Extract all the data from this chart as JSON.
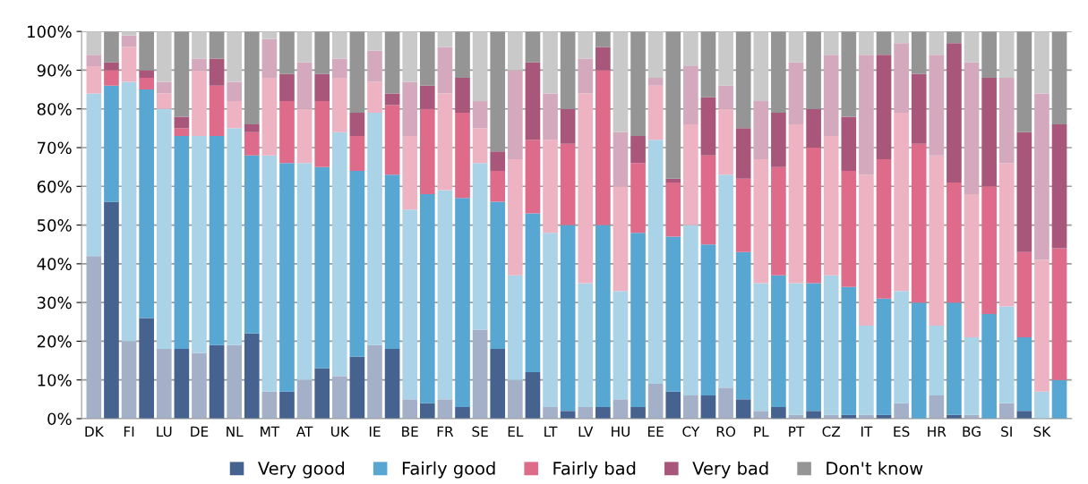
{
  "chart_data": {
    "type": "bar",
    "stacked": true,
    "categories": [
      "DK",
      null,
      "FI",
      null,
      "LU",
      null,
      "DE",
      null,
      "NL",
      null,
      "MT",
      null,
      "AT",
      null,
      "UK",
      null,
      "IE",
      null,
      "BE",
      null,
      "FR",
      null,
      "SE",
      null,
      "EL",
      null,
      "LT",
      null,
      "LV",
      null,
      "HU",
      null,
      "EE",
      null,
      "CY",
      null,
      "RO",
      null,
      "PL",
      null,
      "PT",
      null,
      "CZ",
      null,
      "IT",
      null,
      "ES",
      null,
      "HR",
      null,
      "BG",
      null,
      "SI",
      null,
      "SK",
      null
    ],
    "ylim": [
      0,
      100
    ],
    "yticks": [
      {
        "value": 0,
        "label": "0%"
      },
      {
        "value": 10,
        "label": "10%"
      },
      {
        "value": 20,
        "label": "20%"
      },
      {
        "value": 30,
        "label": "30%"
      },
      {
        "value": 40,
        "label": "40%"
      },
      {
        "value": 50,
        "label": "50%"
      },
      {
        "value": 60,
        "label": "60%"
      },
      {
        "value": 70,
        "label": "70%"
      },
      {
        "value": 80,
        "label": "80%"
      },
      {
        "value": 90,
        "label": "90%"
      },
      {
        "value": 100,
        "label": "100%"
      }
    ],
    "grid": "y",
    "legend": "bottom",
    "series": [
      {
        "color": "#a3b0c8",
        "values": [
          42,
          null,
          20,
          null,
          18,
          null,
          17,
          null,
          19,
          null,
          7,
          null,
          10,
          null,
          11,
          null,
          19,
          null,
          5,
          null,
          5,
          null,
          23,
          null,
          10,
          null,
          3,
          null,
          3,
          null,
          5,
          null,
          9,
          null,
          6,
          null,
          8,
          null,
          2,
          null,
          1,
          null,
          1,
          null,
          1,
          null,
          4,
          null,
          6,
          null,
          1,
          null,
          4,
          null,
          0,
          null
        ]
      },
      {
        "color": "#abd3e7",
        "values": [
          42,
          null,
          67,
          null,
          62,
          null,
          56,
          null,
          56,
          null,
          61,
          null,
          56,
          null,
          63,
          null,
          60,
          null,
          49,
          null,
          54,
          null,
          43,
          null,
          27,
          null,
          45,
          null,
          32,
          null,
          28,
          null,
          63,
          null,
          44,
          null,
          55,
          null,
          33,
          null,
          34,
          null,
          36,
          null,
          23,
          null,
          29,
          null,
          18,
          null,
          20,
          null,
          25,
          null,
          7,
          null
        ]
      },
      {
        "color": "#eeb3c3",
        "values": [
          7,
          null,
          9,
          null,
          4,
          null,
          17,
          null,
          7,
          null,
          20,
          null,
          14,
          null,
          14,
          null,
          8,
          null,
          19,
          null,
          25,
          null,
          9,
          null,
          30,
          null,
          24,
          null,
          49,
          null,
          27,
          null,
          14,
          null,
          26,
          null,
          17,
          null,
          32,
          null,
          41,
          null,
          36,
          null,
          39,
          null,
          46,
          null,
          44,
          null,
          37,
          null,
          37,
          null,
          34,
          null
        ]
      },
      {
        "color": "#d5a9bd",
        "values": [
          3,
          null,
          3,
          null,
          3,
          null,
          3,
          null,
          5,
          null,
          10,
          null,
          12,
          null,
          5,
          null,
          8,
          null,
          14,
          null,
          12,
          null,
          7,
          null,
          23,
          null,
          12,
          null,
          9,
          null,
          14,
          null,
          2,
          null,
          15,
          null,
          6,
          null,
          15,
          null,
          16,
          null,
          21,
          null,
          31,
          null,
          18,
          null,
          26,
          null,
          34,
          null,
          22,
          null,
          43,
          null
        ]
      },
      {
        "color": "#c9c9c9",
        "values": [
          6,
          null,
          1,
          null,
          13,
          null,
          7,
          null,
          13,
          null,
          2,
          null,
          8,
          null,
          7,
          null,
          5,
          null,
          13,
          null,
          4,
          null,
          18,
          null,
          10,
          null,
          16,
          null,
          7,
          null,
          26,
          null,
          12,
          null,
          9,
          null,
          14,
          null,
          18,
          null,
          8,
          null,
          6,
          null,
          6,
          null,
          3,
          null,
          6,
          null,
          8,
          null,
          12,
          null,
          16,
          null
        ]
      },
      {
        "name": "Very good",
        "color": "#46638f",
        "values": [
          null,
          56,
          null,
          26,
          null,
          18,
          null,
          19,
          null,
          22,
          null,
          7,
          null,
          13,
          null,
          16,
          null,
          18,
          null,
          4,
          null,
          3,
          null,
          18,
          null,
          12,
          null,
          2,
          null,
          3,
          null,
          3,
          null,
          7,
          null,
          6,
          null,
          5,
          null,
          3,
          null,
          2,
          null,
          1,
          null,
          1,
          null,
          0,
          null,
          1,
          null,
          0,
          null,
          2,
          null,
          0
        ]
      },
      {
        "name": "Fairly good",
        "color": "#58a6d2",
        "values": [
          null,
          30,
          null,
          59,
          null,
          55,
          null,
          54,
          null,
          46,
          null,
          59,
          null,
          52,
          null,
          48,
          null,
          45,
          null,
          54,
          null,
          54,
          null,
          38,
          null,
          41,
          null,
          48,
          null,
          47,
          null,
          45,
          null,
          40,
          null,
          39,
          null,
          38,
          null,
          34,
          null,
          33,
          null,
          33,
          null,
          30,
          null,
          30,
          null,
          29,
          null,
          27,
          null,
          19,
          null,
          10
        ]
      },
      {
        "name": "Fairly bad",
        "color": "#de6b8a",
        "values": [
          null,
          4,
          null,
          3,
          null,
          2,
          null,
          13,
          null,
          6,
          null,
          16,
          null,
          17,
          null,
          9,
          null,
          18,
          null,
          22,
          null,
          22,
          null,
          8,
          null,
          19,
          null,
          21,
          null,
          40,
          null,
          18,
          null,
          14,
          null,
          23,
          null,
          19,
          null,
          28,
          null,
          35,
          null,
          30,
          null,
          36,
          null,
          41,
          null,
          31,
          null,
          33,
          null,
          22,
          null,
          34
        ]
      },
      {
        "name": "Very bad",
        "color": "#a9567b",
        "values": [
          null,
          2,
          null,
          2,
          null,
          3,
          null,
          7,
          null,
          2,
          null,
          7,
          null,
          7,
          null,
          6,
          null,
          3,
          null,
          6,
          null,
          9,
          null,
          5,
          null,
          20,
          null,
          9,
          null,
          6,
          null,
          7,
          null,
          1,
          null,
          15,
          null,
          13,
          null,
          14,
          null,
          10,
          null,
          14,
          null,
          27,
          null,
          18,
          null,
          36,
          null,
          28,
          null,
          31,
          null,
          32
        ]
      },
      {
        "name": "Don't know",
        "color": "#959595",
        "values": [
          null,
          8,
          null,
          10,
          null,
          22,
          null,
          7,
          null,
          24,
          null,
          11,
          null,
          11,
          null,
          21,
          null,
          16,
          null,
          14,
          null,
          12,
          null,
          31,
          null,
          8,
          null,
          20,
          null,
          4,
          null,
          27,
          null,
          38,
          null,
          17,
          null,
          25,
          null,
          21,
          null,
          20,
          null,
          22,
          null,
          6,
          null,
          11,
          null,
          3,
          null,
          12,
          null,
          26,
          null,
          24
        ]
      }
    ]
  }
}
